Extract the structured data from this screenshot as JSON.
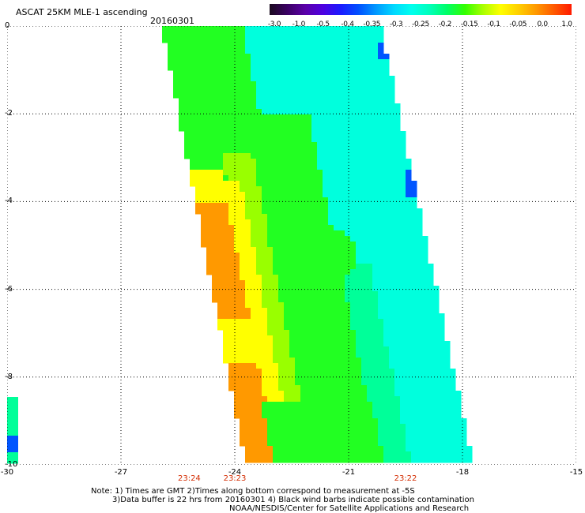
{
  "header": {
    "title": "ASCAT 25KM MLE-1 ascending",
    "date": "20160301"
  },
  "colorbar": {
    "colors": [
      "#1a0a1e",
      "#3a0063",
      "#5a00a8",
      "#4d00e0",
      "#1a1aff",
      "#0050ff",
      "#0099ff",
      "#00d8ff",
      "#00ffee",
      "#00ffbb",
      "#00ff66",
      "#33ff00",
      "#a8ff00",
      "#ffff00",
      "#ffd000",
      "#ff9900",
      "#ff5a00",
      "#ff1a00"
    ],
    "labels": [
      "-3.0",
      "-1.0",
      "-0.5",
      "-0.4",
      "-0.35",
      "-0.3",
      "-0.25",
      "-0.2",
      "-0.15",
      "-0.1",
      "-0.05",
      "0.0",
      "1.0"
    ]
  },
  "map": {
    "x_ticks": [
      "-30",
      "-27",
      "-24",
      "-21",
      "-18",
      "-15"
    ],
    "y_ticks": [
      "0",
      "-2",
      "-4",
      "-6",
      "-8",
      "-10"
    ],
    "x_range": [
      -30,
      -15
    ],
    "y_range": [
      -10,
      0
    ],
    "time_labels": [
      {
        "text": "23:24",
        "lon": -25.2
      },
      {
        "text": "23:23",
        "lon": -24.0
      },
      {
        "text": "23:22",
        "lon": -19.5
      }
    ],
    "swath_colors": {
      "cyan": "#00ffdd",
      "cyan_green": "#00ff99",
      "green": "#22ff22",
      "yellow_green": "#99ff00",
      "yellow": "#ffff00",
      "orange": "#ff9900",
      "blue": "#0055ff"
    }
  },
  "notes": {
    "line1": "Note: 1) Times are GMT 2)Times along bottom correspond to measurement at -5S",
    "line2": "3)Data buffer is 22 hrs from 20160301 4) Black wind barbs indicate possible contamination",
    "line3": "NOAA/NESDIS/Center for Satellite Applications and Research"
  }
}
